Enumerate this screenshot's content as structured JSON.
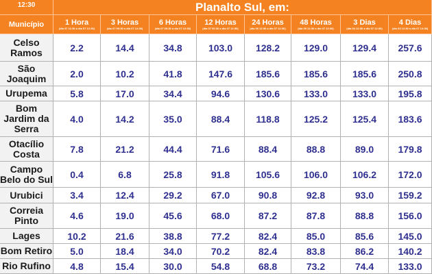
{
  "header": {
    "time": "12:30",
    "title": "Planalto Sul, em:"
  },
  "columns": [
    {
      "label": "Município"
    },
    {
      "label": "1 Hora",
      "sub": "(dia 07 11:30 a dia 07 12:30)"
    },
    {
      "label": "3 Horas",
      "sub": "(dia 07 09:30 a dia 07 12:30)"
    },
    {
      "label": "6 Horas",
      "sub": "(dia 07 06:30 a dia 07 12:30)"
    },
    {
      "label": "12 Horas",
      "sub": "(dia 07 00:30 a dia 07 12:30)"
    },
    {
      "label": "24 Horas",
      "sub": "(dia 06 12:30 a dia 07 12:30)"
    },
    {
      "label": "48 Horas",
      "sub": "(dia 05 12:30 a dia 07 12:30)"
    },
    {
      "label": "3 Dias",
      "sub": "(dia 04 12:30 a dia 07 12:30)"
    },
    {
      "label": "4 Dias",
      "sub": "(dia 03 12:30 a dia 07 12:30)"
    }
  ],
  "rows": [
    {
      "name": "Celso\nRamos",
      "values": [
        "2.2",
        "14.4",
        "34.8",
        "103.0",
        "128.2",
        "129.0",
        "129.4",
        "257.6"
      ]
    },
    {
      "name": "São\nJoaquim",
      "values": [
        "2.0",
        "10.2",
        "41.8",
        "147.6",
        "185.6",
        "185.6",
        "185.6",
        "250.8"
      ]
    },
    {
      "name": "Urupema",
      "values": [
        "5.8",
        "17.0",
        "34.4",
        "94.6",
        "130.6",
        "133.0",
        "133.0",
        "195.8"
      ]
    },
    {
      "name": "Bom\nJardim da\nSerra",
      "values": [
        "4.0",
        "14.2",
        "35.0",
        "88.4",
        "118.8",
        "125.2",
        "125.4",
        "183.6"
      ]
    },
    {
      "name": "Otacílio\nCosta",
      "values": [
        "7.8",
        "21.2",
        "44.4",
        "71.6",
        "88.4",
        "88.8",
        "89.0",
        "179.8"
      ]
    },
    {
      "name": "Campo\nBelo do Sul",
      "values": [
        "0.4",
        "6.8",
        "25.8",
        "91.8",
        "105.6",
        "106.0",
        "106.2",
        "172.0"
      ]
    },
    {
      "name": "Urubici",
      "values": [
        "3.4",
        "12.4",
        "29.2",
        "67.0",
        "90.8",
        "92.8",
        "93.0",
        "159.2"
      ]
    },
    {
      "name": "Correia\nPinto",
      "values": [
        "4.6",
        "19.0",
        "45.6",
        "68.0",
        "87.2",
        "87.8",
        "88.8",
        "156.0"
      ]
    },
    {
      "name": "Lages",
      "values": [
        "10.2",
        "21.6",
        "38.8",
        "77.2",
        "82.4",
        "85.0",
        "85.6",
        "145.0"
      ]
    },
    {
      "name": "Bom Retiro",
      "values": [
        "5.0",
        "18.4",
        "34.0",
        "70.2",
        "82.4",
        "83.8",
        "86.2",
        "140.2"
      ]
    },
    {
      "name": "Rio Rufino",
      "values": [
        "4.8",
        "15.4",
        "30.0",
        "54.8",
        "68.8",
        "73.2",
        "74.4",
        "133.0"
      ]
    }
  ]
}
